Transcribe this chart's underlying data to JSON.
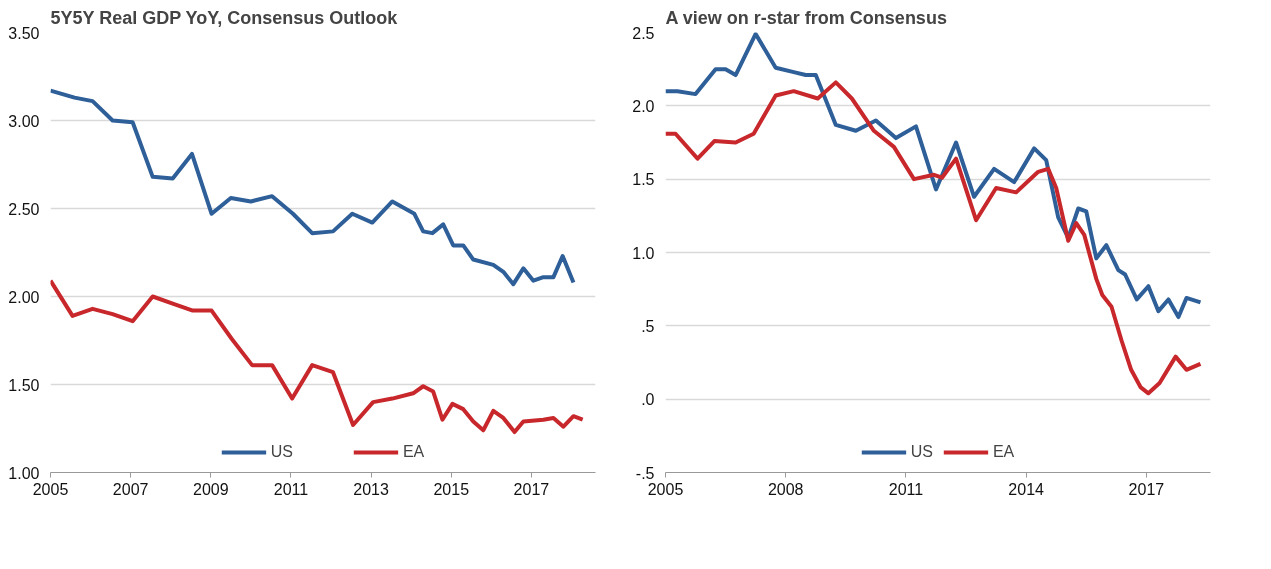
{
  "chart_data": [
    {
      "type": "line",
      "title": "5Y5Y Real GDP  YoY,  Consensus  Outlook",
      "xlim": [
        2005,
        2018.6
      ],
      "xticks": [
        2005,
        2007,
        2009,
        2011,
        2013,
        2015,
        2017
      ],
      "ylim": [
        1,
        3.5
      ],
      "yticks": [
        {
          "value": 1,
          "label": "1.00"
        },
        {
          "value": 1.5,
          "label": "1.50"
        },
        {
          "value": 2,
          "label": "2.00"
        },
        {
          "value": 2.5,
          "label": "2.50"
        },
        {
          "value": 3,
          "label": "3.00"
        },
        {
          "value": 3.5,
          "label": "3.50"
        }
      ],
      "grid": "y",
      "legend": "bottom",
      "series": [
        {
          "name": "US",
          "color": "#2e5f99",
          "x": [
            2005.0,
            2005.6,
            2006.05,
            2006.55,
            2007.05,
            2007.55,
            2008.05,
            2008.53,
            2009.02,
            2009.5,
            2010.0,
            2010.53,
            2011.05,
            2011.53,
            2012.05,
            2012.53,
            2013.03,
            2013.53,
            2014.08,
            2014.3,
            2014.53,
            2014.8,
            2015.05,
            2015.3,
            2015.55,
            2016.05,
            2016.3,
            2016.55,
            2016.8,
            2017.05,
            2017.3,
            2017.55,
            2017.78,
            2018.05
          ],
          "values": [
            3.17,
            3.13,
            3.11,
            3.0,
            2.99,
            2.68,
            2.67,
            2.81,
            2.47,
            2.56,
            2.54,
            2.57,
            2.47,
            2.36,
            2.37,
            2.47,
            2.42,
            2.54,
            2.47,
            2.37,
            2.36,
            2.41,
            2.29,
            2.29,
            2.21,
            2.18,
            2.14,
            2.07,
            2.16,
            2.09,
            2.11,
            2.11,
            2.23,
            2.08
          ]
        },
        {
          "name": "EA",
          "color": "#c8282b",
          "x": [
            2005.0,
            2005.55,
            2006.05,
            2006.55,
            2007.05,
            2007.55,
            2008.05,
            2008.55,
            2009.02,
            2009.52,
            2010.03,
            2010.53,
            2011.03,
            2011.53,
            2012.05,
            2012.55,
            2013.05,
            2013.53,
            2014.05,
            2014.3,
            2014.55,
            2014.78,
            2015.03,
            2015.3,
            2015.55,
            2015.8,
            2016.05,
            2016.3,
            2016.58,
            2016.8,
            2017.3,
            2017.55,
            2017.8,
            2018.05,
            2018.28
          ],
          "values": [
            2.09,
            1.89,
            1.93,
            1.9,
            1.86,
            2.0,
            1.96,
            1.92,
            1.92,
            1.76,
            1.61,
            1.61,
            1.42,
            1.61,
            1.57,
            1.27,
            1.4,
            1.42,
            1.45,
            1.49,
            1.46,
            1.3,
            1.39,
            1.36,
            1.29,
            1.24,
            1.35,
            1.31,
            1.23,
            1.29,
            1.3,
            1.31,
            1.26,
            1.32,
            1.3
          ]
        }
      ]
    },
    {
      "type": "line",
      "title": "A view on r-star from Consensus",
      "xlim": [
        2005,
        2018.6
      ],
      "xticks": [
        2005,
        2008,
        2011,
        2014,
        2017
      ],
      "ylim": [
        -0.5,
        2.5
      ],
      "yticks": [
        {
          "value": -0.5,
          "label": "-.5"
        },
        {
          "value": 0,
          "label": ".0"
        },
        {
          "value": 0.5,
          "label": ".5"
        },
        {
          "value": 1,
          "label": "1.0"
        },
        {
          "value": 1.5,
          "label": "1.5"
        },
        {
          "value": 2,
          "label": "2.0"
        },
        {
          "value": 2.5,
          "label": "2.5"
        }
      ],
      "grid": "y",
      "legend": "bottom",
      "series": [
        {
          "name": "US",
          "color": "#2e5f99",
          "x": [
            2005.0,
            2005.3,
            2005.75,
            2006.25,
            2006.5,
            2006.75,
            2007.25,
            2007.75,
            2008.2,
            2008.5,
            2008.75,
            2009.25,
            2009.75,
            2010.25,
            2010.75,
            2011.25,
            2011.75,
            2012.25,
            2012.7,
            2013.2,
            2013.7,
            2014.2,
            2014.5,
            2014.8,
            2015.05,
            2015.3,
            2015.5,
            2015.75,
            2016.0,
            2016.3,
            2016.47,
            2016.76,
            2017.05,
            2017.3,
            2017.55,
            2017.8,
            2018.0,
            2018.35
          ],
          "values": [
            2.1,
            2.1,
            2.08,
            2.25,
            2.25,
            2.21,
            2.49,
            2.26,
            2.23,
            2.21,
            2.21,
            1.87,
            1.83,
            1.9,
            1.78,
            1.86,
            1.43,
            1.75,
            1.38,
            1.57,
            1.48,
            1.71,
            1.63,
            1.24,
            1.1,
            1.3,
            1.28,
            0.96,
            1.05,
            0.88,
            0.85,
            0.68,
            0.77,
            0.6,
            0.68,
            0.56,
            0.69,
            0.66
          ]
        },
        {
          "name": "EA",
          "color": "#c8282b",
          "x": [
            2005.0,
            2005.25,
            2005.8,
            2006.22,
            2006.75,
            2007.2,
            2007.75,
            2008.2,
            2008.8,
            2009.25,
            2009.65,
            2010.2,
            2010.7,
            2011.2,
            2011.7,
            2011.9,
            2012.25,
            2012.75,
            2013.25,
            2013.75,
            2014.3,
            2014.55,
            2014.75,
            2015.05,
            2015.25,
            2015.45,
            2015.75,
            2015.9,
            2016.13,
            2016.38,
            2016.62,
            2016.86,
            2017.05,
            2017.33,
            2017.73,
            2018.0,
            2018.35
          ],
          "values": [
            1.81,
            1.81,
            1.64,
            1.76,
            1.75,
            1.81,
            2.07,
            2.1,
            2.05,
            2.16,
            2.05,
            1.83,
            1.72,
            1.5,
            1.53,
            1.51,
            1.64,
            1.22,
            1.44,
            1.41,
            1.55,
            1.57,
            1.44,
            1.08,
            1.2,
            1.12,
            0.82,
            0.71,
            0.63,
            0.4,
            0.2,
            0.08,
            0.04,
            0.11,
            0.29,
            0.2,
            0.24
          ]
        }
      ]
    }
  ]
}
